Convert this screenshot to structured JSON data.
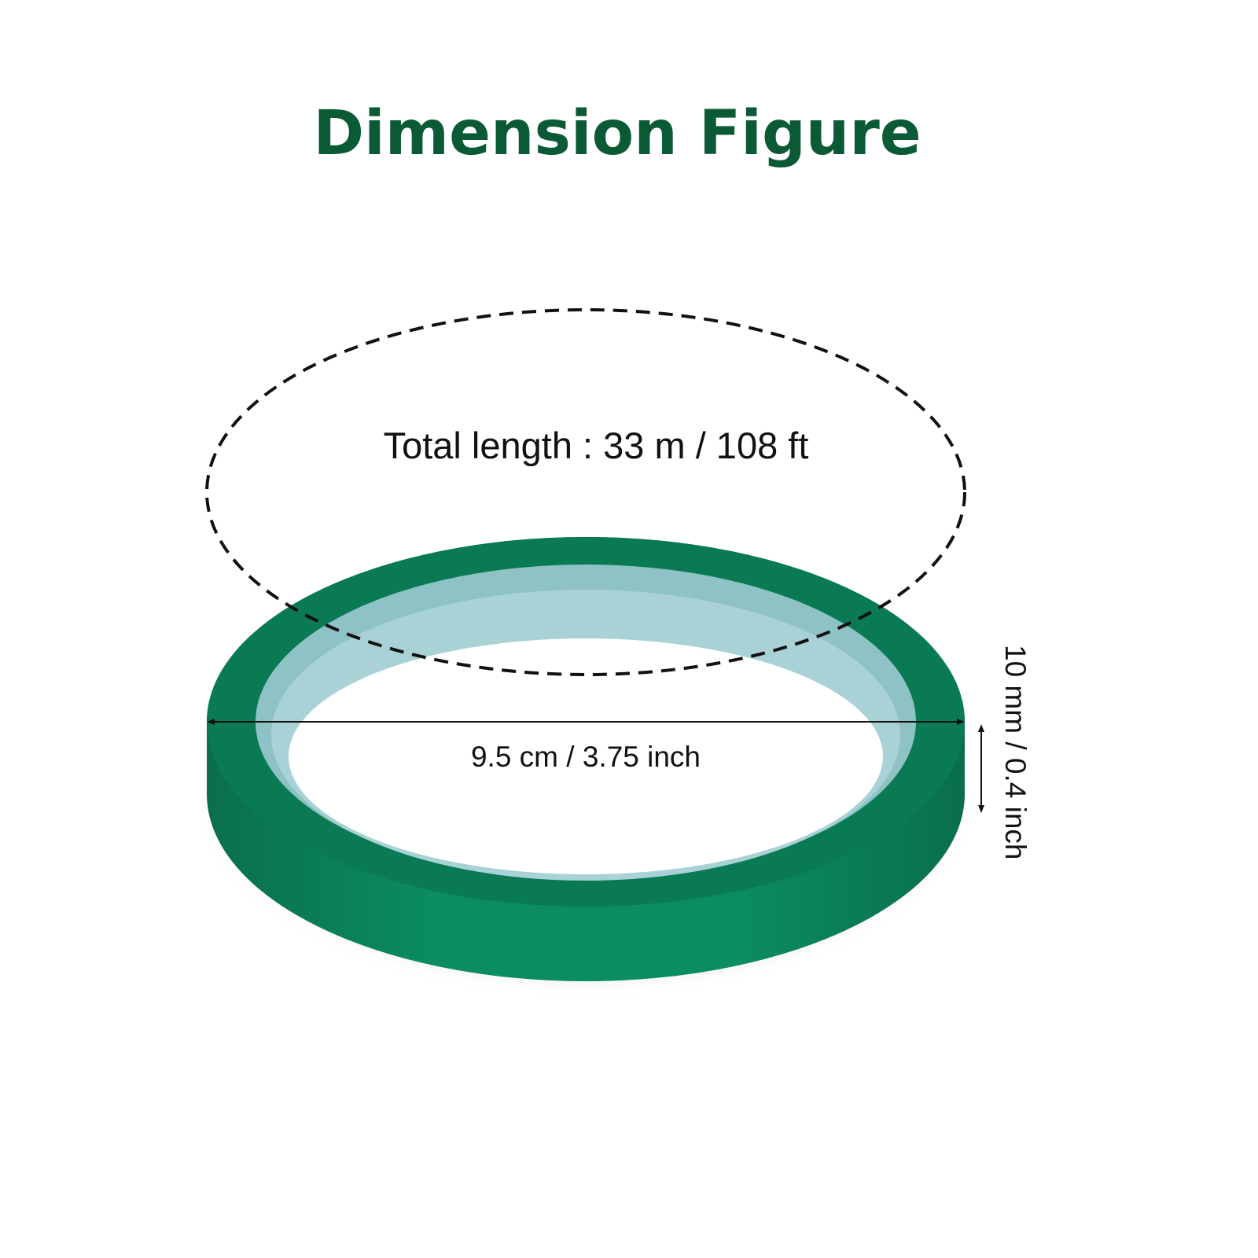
{
  "title": "Dimension Figure",
  "total_length_label": "Total length : 33 m / 108 ft",
  "diameter_label": "9.5 cm / 3.75 inch",
  "width_label": "10 mm / 0.4 inch",
  "colors": {
    "title": "#0b5a36",
    "tape": "#0a8a62",
    "tape_dark": "#0a6e4c",
    "core": "#8fc2c4"
  }
}
